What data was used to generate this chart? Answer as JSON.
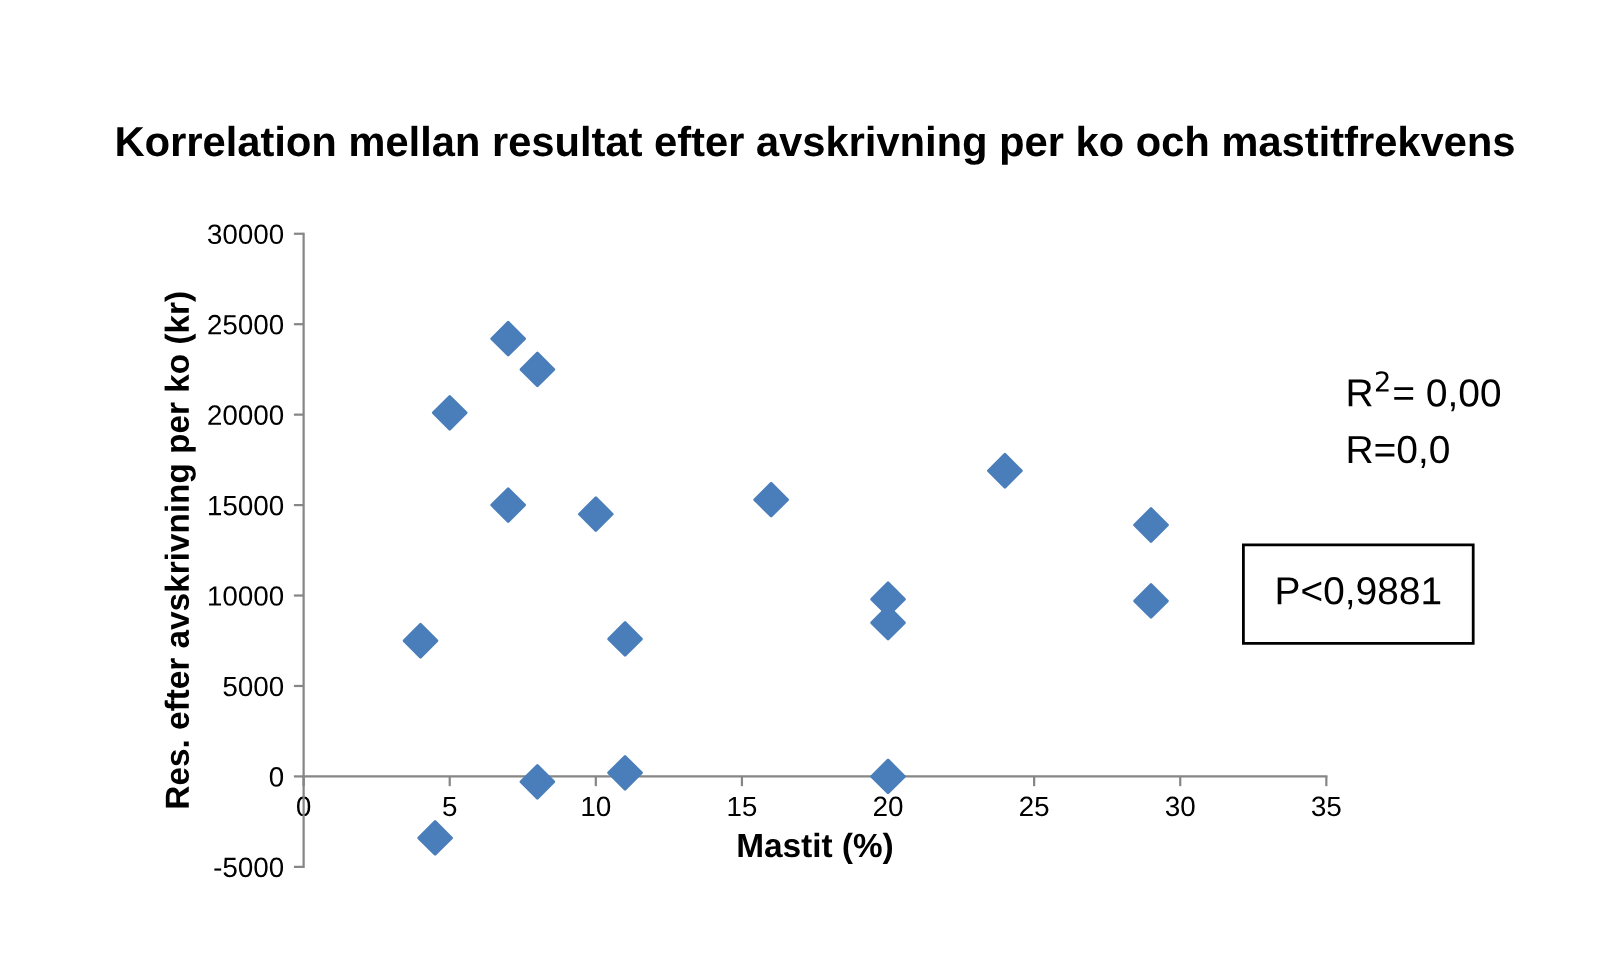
{
  "chart_data": {
    "type": "scatter",
    "title": "Korrelation mellan resultat efter avskrivning per ko och mastitfrekvens",
    "xlabel": "Mastit (%)",
    "ylabel": "Res. efter avskrivning per ko (kr)",
    "x": [
      4,
      5,
      4.5,
      7,
      7,
      8,
      8,
      10,
      11,
      11,
      16,
      20,
      20,
      20,
      24,
      29,
      29
    ],
    "series": [
      {
        "color": "#4a7ebb",
        "values": [
          7500,
          20100,
          -3400,
          24200,
          15000,
          22500,
          -300,
          14500,
          7600,
          200,
          15300,
          9800,
          8500,
          0,
          16900,
          13900,
          9700
        ]
      }
    ],
    "marker": "diamond",
    "xlim": [
      0,
      35
    ],
    "xticks": [
      0,
      5,
      10,
      15,
      20,
      25,
      30,
      35
    ],
    "ylim": [
      -5000,
      30000
    ],
    "yticks": [
      -5000,
      0,
      5000,
      10000,
      15000,
      20000,
      25000,
      30000
    ],
    "grid": false,
    "legend": false,
    "annotations": [
      "R$^{2}$= 0,00",
      "R=0,0",
      "P<0,9881"
    ]
  }
}
